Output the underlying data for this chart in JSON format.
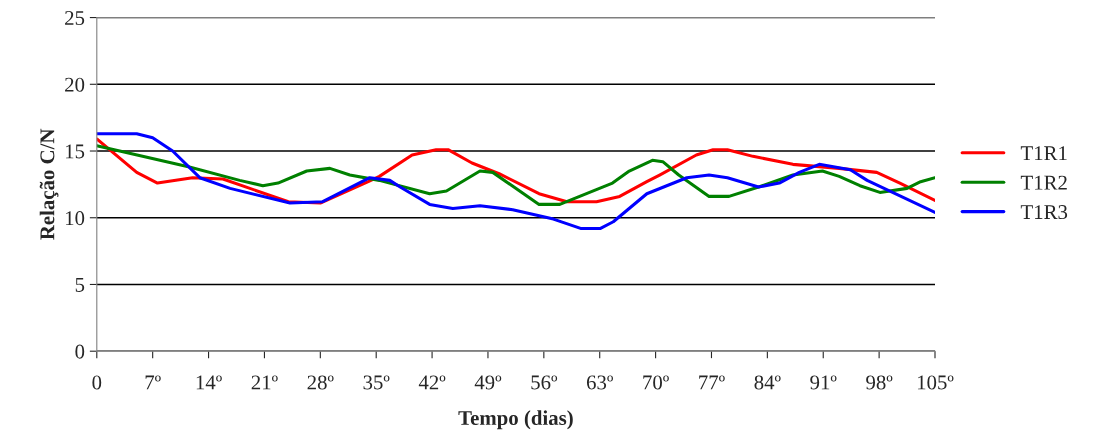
{
  "chart_data": {
    "type": "line",
    "xlabel": "Tempo (dias)",
    "ylabel": "Relação C/N",
    "xlim": [
      0,
      105
    ],
    "xticks": [
      0,
      {
        "value": 7,
        "label": "7º"
      },
      {
        "value": 14,
        "label": "14º"
      },
      {
        "value": 21,
        "label": "21º"
      },
      {
        "value": 28,
        "label": "28º"
      },
      {
        "value": 35,
        "label": "35º"
      },
      {
        "value": 42,
        "label": "42º"
      },
      {
        "value": 49,
        "label": "49º"
      },
      {
        "value": 56,
        "label": "56º"
      },
      {
        "value": 63,
        "label": "63º"
      },
      {
        "value": 70,
        "label": "70º"
      },
      {
        "value": 77,
        "label": "77º"
      },
      {
        "value": 84,
        "label": "84º"
      },
      {
        "value": 91,
        "label": "91º"
      },
      {
        "value": 98,
        "label": "98º"
      },
      {
        "value": 105,
        "label": "105º"
      }
    ],
    "ylim": [
      0,
      25
    ],
    "yticks": [
      0,
      5,
      10,
      15,
      20,
      25
    ],
    "grid": "y",
    "legend": "right",
    "marker": "none",
    "line_style": "solid",
    "series": [
      {
        "name": "T1R1",
        "color": "#ff0000",
        "x": [
          0,
          5,
          7.6,
          12,
          15.8,
          24,
          28,
          34,
          35.4,
          39.5,
          42.5,
          44,
          47,
          50.4,
          55.4,
          58.9,
          62.6,
          65.5,
          68.9,
          70.5,
          75.1,
          77.2,
          79,
          82.2,
          87.2,
          93,
          97.7,
          100.6,
          105
        ],
        "values": [
          15.9,
          13.4,
          12.6,
          13.0,
          12.9,
          11.2,
          11.1,
          12.7,
          13.1,
          14.7,
          15.1,
          15.1,
          14.1,
          13.3,
          11.8,
          11.2,
          11.2,
          11.6,
          12.7,
          13.2,
          14.7,
          15.1,
          15.1,
          14.6,
          14.0,
          13.7,
          13.4,
          12.6,
          11.3
        ]
      },
      {
        "name": "T1R2",
        "color": "#008000",
        "x": [
          0,
          11.6,
          17.9,
          20.8,
          22.7,
          26.3,
          29.2,
          31.7,
          35.4,
          41.7,
          43.8,
          48,
          49.6,
          55.4,
          58,
          64.6,
          66.7,
          69.6,
          70.9,
          72.9,
          76.7,
          79.2,
          82.9,
          87.2,
          90.9,
          93,
          95.6,
          98.1,
          101.5,
          103.2,
          105
        ],
        "values": [
          15.4,
          13.8,
          12.8,
          12.4,
          12.6,
          13.5,
          13.7,
          13.2,
          12.8,
          11.8,
          12.0,
          13.5,
          13.4,
          11.0,
          11.0,
          12.6,
          13.5,
          14.3,
          14.2,
          13.2,
          11.6,
          11.6,
          12.3,
          13.2,
          13.5,
          13.1,
          12.4,
          11.9,
          12.2,
          12.7,
          13.0
        ]
      },
      {
        "name": "T1R3",
        "color": "#0000ff",
        "x": [
          0,
          5,
          7,
          9.5,
          12.9,
          16.7,
          24.2,
          28.3,
          34.2,
          36.7,
          38,
          41.7,
          44.6,
          48,
          52.1,
          57.2,
          60.6,
          63.1,
          64.7,
          68.9,
          73.9,
          76.7,
          79,
          82.9,
          85.5,
          88,
          90.5,
          94.4,
          96.5,
          105
        ],
        "values": [
          16.3,
          16.3,
          16.0,
          15.0,
          13.0,
          12.2,
          11.1,
          11.2,
          13.0,
          12.8,
          12.3,
          11.0,
          10.7,
          10.9,
          10.6,
          9.9,
          9.2,
          9.2,
          9.7,
          11.8,
          13.0,
          13.2,
          13.0,
          12.3,
          12.6,
          13.4,
          14.0,
          13.6,
          12.8,
          10.4
        ]
      }
    ]
  }
}
